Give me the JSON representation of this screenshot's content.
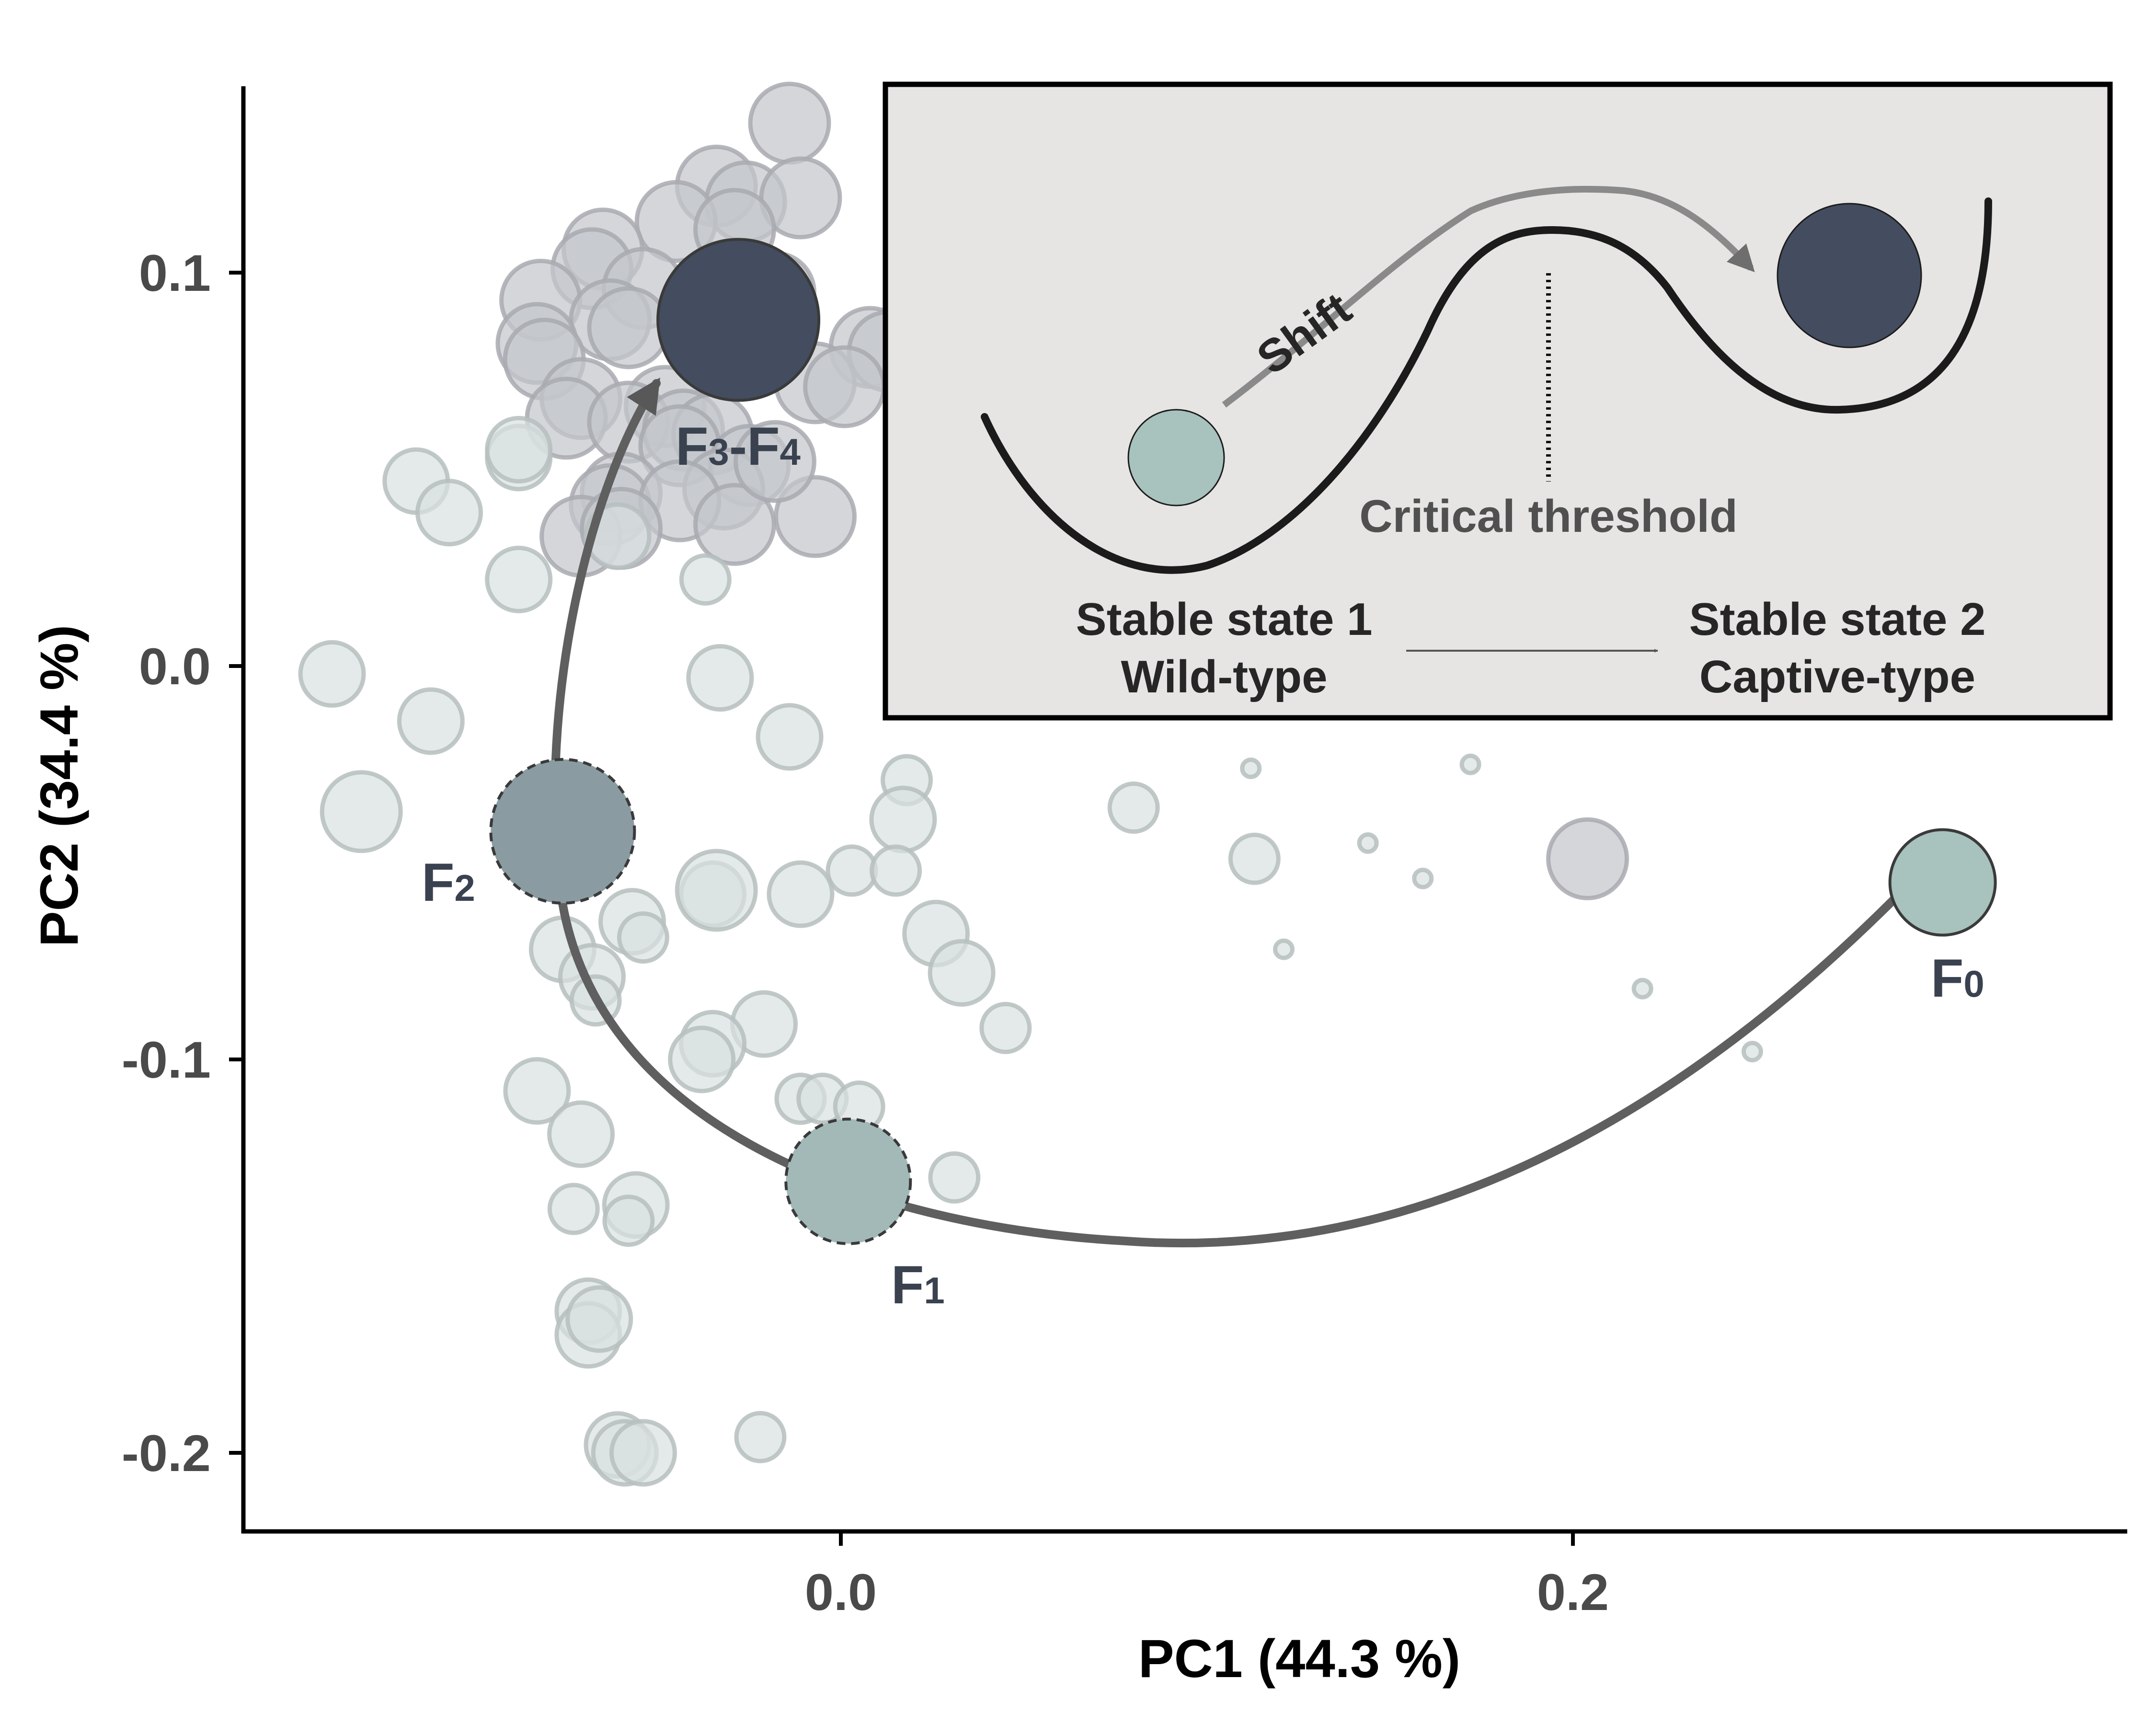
{
  "chart_data": {
    "type": "scatter",
    "xlabel": "PC1 (44.3 %)",
    "ylabel": "PC2 (34.4 %)",
    "xlim": [
      -0.163,
      0.354
    ],
    "ylim": [
      -0.22,
      0.147
    ],
    "xticks": [
      {
        "value": 0.0,
        "label": "0.0"
      },
      {
        "value": 0.2,
        "label": "0.2"
      }
    ],
    "yticks": [
      {
        "value": 0.1,
        "label": "0.1"
      },
      {
        "value": 0.0,
        "label": "0.0"
      },
      {
        "value": -0.1,
        "label": "-0.1"
      },
      {
        "value": -0.2,
        "label": "-0.2"
      }
    ],
    "grid": false,
    "background_points": [
      {
        "x": -0.014,
        "y": 0.138,
        "s": 3,
        "g": "dark"
      },
      {
        "x": -0.034,
        "y": 0.122,
        "s": 3,
        "g": "dark"
      },
      {
        "x": -0.026,
        "y": 0.118,
        "s": 3,
        "g": "dark"
      },
      {
        "x": -0.011,
        "y": 0.119,
        "s": 3,
        "g": "dark"
      },
      {
        "x": -0.045,
        "y": 0.113,
        "s": 3,
        "g": "dark"
      },
      {
        "x": -0.029,
        "y": 0.111,
        "s": 3,
        "g": "dark"
      },
      {
        "x": -0.065,
        "y": 0.106,
        "s": 3,
        "g": "dark"
      },
      {
        "x": -0.068,
        "y": 0.101,
        "s": 3,
        "g": "dark"
      },
      {
        "x": -0.082,
        "y": 0.093,
        "s": 3,
        "g": "dark"
      },
      {
        "x": -0.054,
        "y": 0.096,
        "s": 3,
        "g": "dark"
      },
      {
        "x": -0.018,
        "y": 0.095,
        "s": 3,
        "g": "dark"
      },
      {
        "x": -0.063,
        "y": 0.088,
        "s": 3,
        "g": "dark"
      },
      {
        "x": -0.058,
        "y": 0.086,
        "s": 3,
        "g": "dark"
      },
      {
        "x": -0.083,
        "y": 0.082,
        "s": 3,
        "g": "dark"
      },
      {
        "x": -0.081,
        "y": 0.078,
        "s": 3,
        "g": "dark"
      },
      {
        "x": 0.008,
        "y": 0.081,
        "s": 3,
        "g": "dark"
      },
      {
        "x": 0.013,
        "y": 0.08,
        "s": 3,
        "g": "dark"
      },
      {
        "x": -0.007,
        "y": 0.072,
        "s": 3,
        "g": "dark"
      },
      {
        "x": -0.071,
        "y": 0.068,
        "s": 3,
        "g": "dark"
      },
      {
        "x": -0.075,
        "y": 0.063,
        "s": 3,
        "g": "dark"
      },
      {
        "x": 0.001,
        "y": 0.071,
        "s": 3,
        "g": "dark"
      },
      {
        "x": -0.048,
        "y": 0.066,
        "s": 3,
        "g": "dark"
      },
      {
        "x": -0.058,
        "y": 0.062,
        "s": 3,
        "g": "dark"
      },
      {
        "x": -0.043,
        "y": 0.06,
        "s": 3,
        "g": "dark"
      },
      {
        "x": -0.035,
        "y": 0.059,
        "s": 3,
        "g": "dark"
      },
      {
        "x": -0.044,
        "y": 0.056,
        "s": 3,
        "g": "dark"
      },
      {
        "x": -0.025,
        "y": 0.051,
        "s": 3,
        "g": "dark"
      },
      {
        "x": -0.032,
        "y": 0.045,
        "s": 3,
        "g": "dark"
      },
      {
        "x": -0.06,
        "y": 0.044,
        "s": 3,
        "g": "dark"
      },
      {
        "x": -0.063,
        "y": 0.041,
        "s": 3,
        "g": "dark"
      },
      {
        "x": -0.044,
        "y": 0.042,
        "s": 3,
        "g": "dark"
      },
      {
        "x": -0.071,
        "y": 0.033,
        "s": 3,
        "g": "dark"
      },
      {
        "x": -0.06,
        "y": 0.035,
        "s": 3,
        "g": "dark"
      },
      {
        "x": -0.029,
        "y": 0.036,
        "s": 3,
        "g": "dark"
      },
      {
        "x": -0.007,
        "y": 0.038,
        "s": 3,
        "g": "dark"
      },
      {
        "x": -0.018,
        "y": 0.052,
        "s": 3,
        "g": "dark"
      },
      {
        "x": -0.116,
        "y": 0.047,
        "s": 2,
        "g": "light"
      },
      {
        "x": -0.107,
        "y": 0.039,
        "s": 2,
        "g": "light"
      },
      {
        "x": -0.088,
        "y": 0.053,
        "s": 2,
        "g": "light"
      },
      {
        "x": -0.088,
        "y": 0.055,
        "s": 2,
        "g": "light"
      },
      {
        "x": -0.088,
        "y": 0.022,
        "s": 2,
        "g": "light"
      },
      {
        "x": -0.037,
        "y": 0.022,
        "s": 1,
        "g": "light"
      },
      {
        "x": -0.061,
        "y": 0.033,
        "s": 2,
        "g": "light"
      },
      {
        "x": -0.139,
        "y": -0.002,
        "s": 2,
        "g": "light"
      },
      {
        "x": -0.112,
        "y": -0.014,
        "s": 2,
        "g": "light"
      },
      {
        "x": -0.033,
        "y": -0.003,
        "s": 2,
        "g": "light"
      },
      {
        "x": -0.014,
        "y": -0.018,
        "s": 2,
        "g": "light"
      },
      {
        "x": -0.131,
        "y": -0.037,
        "s": 3,
        "g": "light"
      },
      {
        "x": 0.018,
        "y": -0.029,
        "s": 1,
        "g": "light"
      },
      {
        "x": 0.017,
        "y": -0.039,
        "s": 2,
        "g": "light"
      },
      {
        "x": 0.003,
        "y": -0.052,
        "s": 1,
        "g": "light"
      },
      {
        "x": 0.015,
        "y": -0.052,
        "s": 1,
        "g": "light"
      },
      {
        "x": -0.035,
        "y": -0.058,
        "s": 2,
        "g": "light"
      },
      {
        "x": -0.034,
        "y": -0.057,
        "s": 3,
        "g": "light"
      },
      {
        "x": -0.011,
        "y": -0.058,
        "s": 2,
        "g": "light"
      },
      {
        "x": -0.057,
        "y": -0.065,
        "s": 2,
        "g": "light"
      },
      {
        "x": -0.054,
        "y": -0.069,
        "s": 1,
        "g": "light"
      },
      {
        "x": -0.076,
        "y": -0.072,
        "s": 2,
        "g": "light"
      },
      {
        "x": -0.068,
        "y": -0.079,
        "s": 2,
        "g": "light"
      },
      {
        "x": -0.067,
        "y": -0.085,
        "s": 1,
        "g": "light"
      },
      {
        "x": 0.026,
        "y": -0.068,
        "s": 2,
        "g": "light"
      },
      {
        "x": 0.033,
        "y": -0.078,
        "s": 2,
        "g": "light"
      },
      {
        "x": 0.045,
        "y": -0.092,
        "s": 1,
        "g": "light"
      },
      {
        "x": -0.021,
        "y": -0.091,
        "s": 2,
        "g": "light"
      },
      {
        "x": -0.035,
        "y": -0.096,
        "s": 2,
        "g": "light"
      },
      {
        "x": -0.038,
        "y": -0.1,
        "s": 2,
        "g": "light"
      },
      {
        "x": -0.083,
        "y": -0.108,
        "s": 2,
        "g": "light"
      },
      {
        "x": -0.071,
        "y": -0.119,
        "s": 2,
        "g": "light"
      },
      {
        "x": -0.011,
        "y": -0.11,
        "s": 1,
        "g": "light"
      },
      {
        "x": -0.005,
        "y": -0.11,
        "s": 1,
        "g": "light"
      },
      {
        "x": 0.005,
        "y": -0.112,
        "s": 1,
        "g": "light"
      },
      {
        "x": 0.031,
        "y": -0.13,
        "s": 1,
        "g": "light"
      },
      {
        "x": -0.004,
        "y": -0.13,
        "s": 1,
        "g": "light"
      },
      {
        "x": -0.073,
        "y": -0.138,
        "s": 1,
        "g": "light"
      },
      {
        "x": -0.056,
        "y": -0.137,
        "s": 2,
        "g": "light"
      },
      {
        "x": -0.058,
        "y": -0.141,
        "s": 1,
        "g": "light"
      },
      {
        "x": -0.069,
        "y": -0.164,
        "s": 2,
        "g": "light"
      },
      {
        "x": -0.069,
        "y": -0.17,
        "s": 2,
        "g": "light"
      },
      {
        "x": -0.066,
        "y": -0.166,
        "s": 2,
        "g": "light"
      },
      {
        "x": -0.061,
        "y": -0.198,
        "s": 2,
        "g": "light"
      },
      {
        "x": -0.059,
        "y": -0.2,
        "s": 2,
        "g": "light"
      },
      {
        "x": -0.054,
        "y": -0.2,
        "s": 2,
        "g": "light"
      },
      {
        "x": -0.022,
        "y": -0.196,
        "s": 1,
        "g": "light"
      },
      {
        "x": 0.08,
        "y": -0.036,
        "s": 1,
        "g": "light"
      },
      {
        "x": 0.113,
        "y": -0.049,
        "s": 1,
        "g": "light"
      },
      {
        "x": 0.112,
        "y": -0.026,
        "s": 0,
        "g": "light"
      },
      {
        "x": 0.144,
        "y": -0.045,
        "s": 0,
        "g": "light"
      },
      {
        "x": 0.159,
        "y": -0.054,
        "s": 0,
        "g": "light"
      },
      {
        "x": 0.172,
        "y": -0.025,
        "s": 0,
        "g": "light"
      },
      {
        "x": 0.121,
        "y": -0.072,
        "s": 0,
        "g": "light"
      },
      {
        "x": 0.219,
        "y": -0.082,
        "s": 0,
        "g": "light"
      },
      {
        "x": 0.249,
        "y": -0.098,
        "s": 0,
        "g": "light"
      },
      {
        "x": 0.204,
        "y": -0.049,
        "s": 3,
        "g": "dark"
      }
    ],
    "highlight_points": [
      {
        "label": "F",
        "sub": "0",
        "x": 0.301,
        "y": -0.055,
        "color": "#a8c2be",
        "dashed": false
      },
      {
        "label": "F",
        "sub": "1",
        "x": 0.002,
        "y": -0.131,
        "color": "#a3b9b8",
        "dashed": true
      },
      {
        "label": "F",
        "sub": "2",
        "x": -0.076,
        "y": -0.042,
        "color": "#8a9ca2",
        "dashed": true
      },
      {
        "label": "F",
        "sub": "3",
        "label2": "-F",
        "sub2": "4",
        "x": -0.028,
        "y": 0.088,
        "color": "#434d5f",
        "dashed": false
      }
    ],
    "trajectory": "F0 → F1 → F2 → F3-F4"
  },
  "inset": {
    "shift_label": "Shift",
    "threshold_label": "Critical threshold",
    "state1_title": "Stable state 1",
    "state1_type": "Wild-type",
    "state2_title": "Stable state 2",
    "state2_type": "Captive-type",
    "state1_color": "#a8c2be",
    "state2_color": "#434d5f"
  }
}
